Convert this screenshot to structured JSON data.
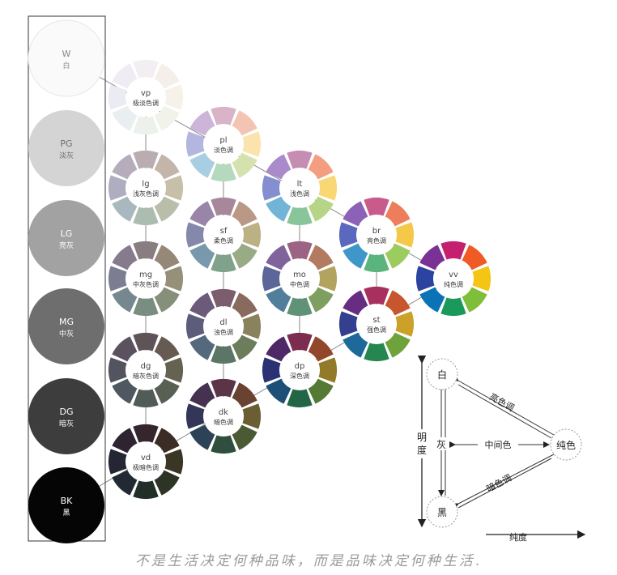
{
  "grays": [
    {
      "code": "W",
      "name": "白",
      "fill": "#fafafa",
      "text": "#888888"
    },
    {
      "code": "PG",
      "name": "淡灰",
      "fill": "#d4d4d4",
      "text": "#6f6f6f"
    },
    {
      "code": "LG",
      "name": "亮灰",
      "fill": "#a2a2a2",
      "text": "#ffffff"
    },
    {
      "code": "MG",
      "name": "中灰",
      "fill": "#6e6e6e",
      "text": "#ffffff"
    },
    {
      "code": "DG",
      "name": "暗灰",
      "fill": "#3d3d3d",
      "text": "#ffffff"
    },
    {
      "code": "BK",
      "name": "黑",
      "fill": "#050505",
      "text": "#ffffff"
    }
  ],
  "tones": [
    {
      "id": "vp",
      "code": "vp",
      "name": "极淡色调",
      "colors": [
        "#f3eef1",
        "#f5efea",
        "#f6f2e9",
        "#f1f2ea",
        "#ecf1ec",
        "#e9eff1",
        "#eaebf3",
        "#efecf3"
      ]
    },
    {
      "id": "pl",
      "code": "pl",
      "name": "淡色调",
      "colors": [
        "#d9b4c8",
        "#f3c3b3",
        "#fbe3ad",
        "#d5e2b0",
        "#b4d9bc",
        "#a8cee1",
        "#b3b6df",
        "#cdb5da"
      ]
    },
    {
      "id": "lg",
      "code": "lg",
      "name": "浅灰色调",
      "colors": [
        "#b9adb1",
        "#c3b5aa",
        "#c6c0a8",
        "#b8bea9",
        "#acbcb1",
        "#a9b8bf",
        "#aeaec0",
        "#b6acbc"
      ]
    },
    {
      "id": "lt",
      "code": "lt",
      "name": "浅色调",
      "colors": [
        "#c58db2",
        "#f39e80",
        "#f8d774",
        "#b6d587",
        "#88c59a",
        "#72b4d6",
        "#858fd0",
        "#a98bcb"
      ]
    },
    {
      "id": "sf",
      "code": "sf",
      "name": "柔色调",
      "colors": [
        "#a9879a",
        "#b99985",
        "#bbb184",
        "#98ab85",
        "#80a28d",
        "#7899ac",
        "#8489ac",
        "#9985a8"
      ]
    },
    {
      "id": "mg",
      "code": "mg",
      "name": "中灰色调",
      "colors": [
        "#8a7d82",
        "#968878",
        "#969078",
        "#868f79",
        "#798d81",
        "#778790",
        "#7c7d91",
        "#867b8d"
      ]
    },
    {
      "id": "br",
      "code": "br",
      "name": "亮色调",
      "colors": [
        "#c95b8c",
        "#ee7e5b",
        "#f4c94a",
        "#9ccc5e",
        "#5cb47d",
        "#3f97c9",
        "#5a68bd",
        "#8c62b8"
      ]
    },
    {
      "id": "mo",
      "code": "mo",
      "name": "中色调",
      "colors": [
        "#9c6484",
        "#b17a61",
        "#b2a45f",
        "#7f9f61",
        "#5f9277",
        "#517e9b",
        "#5d6699",
        "#80639a"
      ]
    },
    {
      "id": "dl",
      "code": "dl",
      "name": "浊色调",
      "colors": [
        "#7b5d6e",
        "#896a5e",
        "#8a825d",
        "#6c7d5c",
        "#5b7667",
        "#546a7c",
        "#5b5d7b",
        "#6c5a7a"
      ]
    },
    {
      "id": "dg",
      "code": "dg",
      "name": "暗灰色调",
      "colors": [
        "#5e5458",
        "#655b53",
        "#656252",
        "#585f53",
        "#515c56",
        "#4f5860",
        "#53545f",
        "#5b525f"
      ]
    },
    {
      "id": "vv",
      "code": "vv",
      "name": "纯色调",
      "colors": [
        "#c51f6f",
        "#ef5a25",
        "#f5c515",
        "#7fbe3a",
        "#1a9a5a",
        "#0a73b5",
        "#2c43a0",
        "#7a3194"
      ]
    },
    {
      "id": "st",
      "code": "st",
      "name": "强色调",
      "colors": [
        "#a8305e",
        "#c7562e",
        "#cba12a",
        "#6ea23a",
        "#258650",
        "#1d6a9a",
        "#353f8f",
        "#672d82"
      ]
    },
    {
      "id": "dp",
      "code": "dp",
      "name": "深色调",
      "colors": [
        "#7c2c4f",
        "#93472a",
        "#927a28",
        "#557a34",
        "#226645",
        "#1e5077",
        "#2b3173",
        "#4f2868"
      ]
    },
    {
      "id": "dk",
      "code": "dk",
      "name": "暗色调",
      "colors": [
        "#5c3447",
        "#6a4232",
        "#6a5e32",
        "#4a5a35",
        "#2f4e3e",
        "#2e4257",
        "#333656",
        "#453150"
      ]
    },
    {
      "id": "vd",
      "code": "vd",
      "name": "极暗色调",
      "colors": [
        "#35262d",
        "#3b2c25",
        "#3a3625",
        "#2d3426",
        "#222e28",
        "#212a33",
        "#252634",
        "#2e2431"
      ]
    }
  ],
  "legend": {
    "white": "白",
    "black": "黑",
    "gray": "灰",
    "pure": "纯色",
    "bright_tones": "亮色调",
    "dark_tones": "暗色调",
    "middle": "中间色",
    "lightness_axis": "明度",
    "chroma_axis": "纯度"
  },
  "caption": "不是生活决定何种品味，而是品味决定何种生活."
}
